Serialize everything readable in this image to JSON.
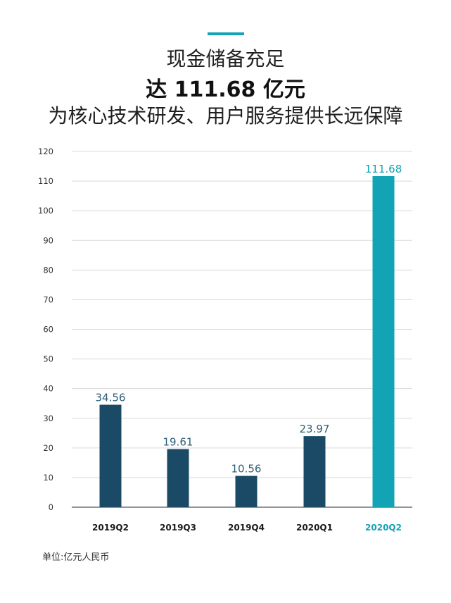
{
  "header": {
    "title_line1": "现金储备充足",
    "title_line2": "达 111.68 亿元",
    "title_line3": "为核心技术研发、用户服务提供长远保障"
  },
  "footer": {
    "unit": "单位:亿元人民币"
  },
  "colors": {
    "bar": "#1a4a66",
    "highlight": "#12a3b5",
    "grid": "#d9d9d9",
    "axis_text": "#333333",
    "value_text": "#2d5f78"
  },
  "chart_data": {
    "type": "bar",
    "title": "",
    "xlabel": "",
    "ylabel": "",
    "categories": [
      "2019Q2",
      "2019Q3",
      "2019Q4",
      "2020Q1",
      "2020Q2"
    ],
    "values": [
      34.56,
      19.61,
      10.56,
      23.97,
      111.68
    ],
    "value_labels": [
      "34.56",
      "19.61",
      "10.56",
      "23.97",
      "111.68"
    ],
    "highlight_category": "2020Q2",
    "ylim": [
      0,
      120
    ],
    "yticks": [
      0,
      10,
      20,
      30,
      40,
      50,
      60,
      70,
      80,
      90,
      100,
      110,
      120
    ],
    "grid": true,
    "legend": "none"
  }
}
